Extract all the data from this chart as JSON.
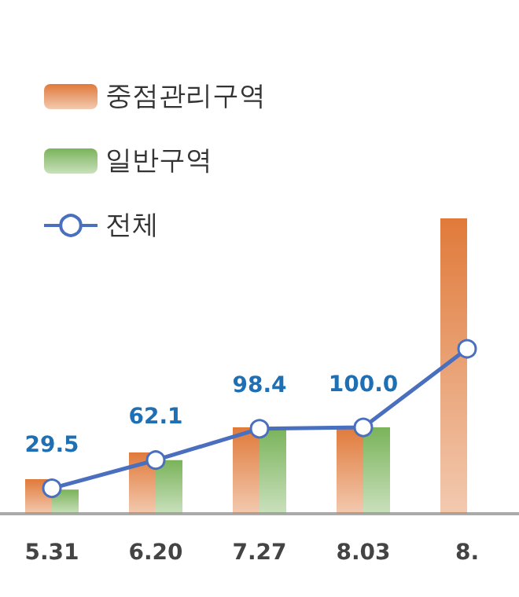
{
  "chart_data": {
    "type": "bar",
    "categories": [
      "5.31",
      "6.20",
      "7.27",
      "8.03",
      "8."
    ],
    "series": [
      {
        "name": "중점관리구역",
        "color": "#e07a3a",
        "values": [
          40,
          71,
          100,
          100,
          342
        ]
      },
      {
        "name": "일반구역",
        "color": "#7ab35a",
        "values": [
          28,
          62,
          100,
          100,
          null
        ]
      },
      {
        "name": "전체",
        "type": "line",
        "color": "#4a6fbf",
        "values": [
          29.5,
          62.1,
          98.4,
          100.0,
          191
        ],
        "value_labels": [
          "29.5",
          "62.1",
          "98.4",
          "100.0",
          null
        ],
        "marker": "circle",
        "line_style": "solid"
      }
    ],
    "legend": "top left"
  }
}
